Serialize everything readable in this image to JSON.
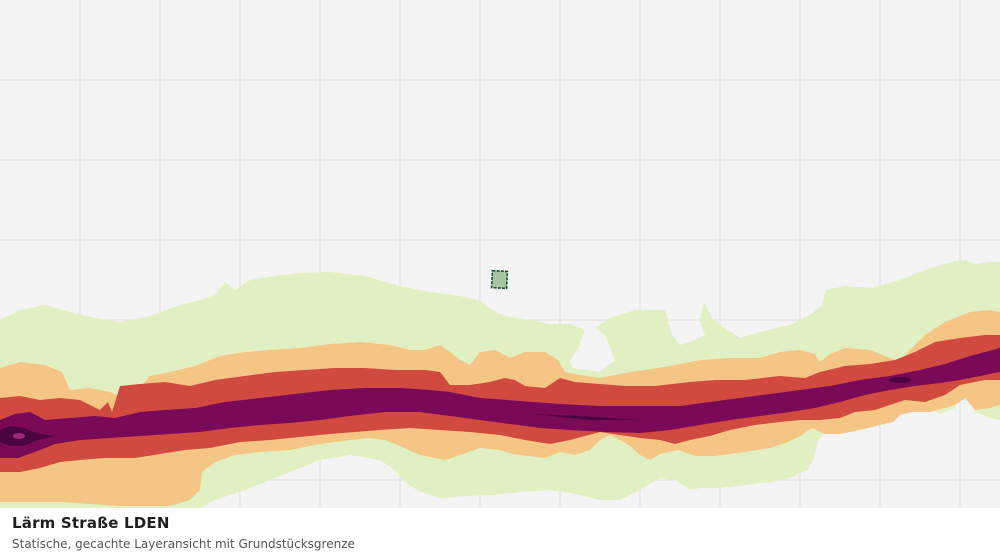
{
  "layer": {
    "title": "Lärm Straße LDEN",
    "subtitle": "Statische, gecachte Layeransicht mit Grundstücksgrenze"
  },
  "colors": {
    "background": "#f3f4f3",
    "grid": "#dcdedc",
    "band_lightest": "#e1f0c2",
    "band_light": "#f4c584",
    "band_medium": "#d04a40",
    "band_high": "#7a0a58",
    "band_highest": "#4a0540",
    "parcel_fill": "#a9c4a0",
    "parcel_border": "#1f4d2f"
  },
  "map": {
    "features": [
      "noise-contour-bands",
      "parcel-boundary",
      "tile-grid"
    ]
  }
}
